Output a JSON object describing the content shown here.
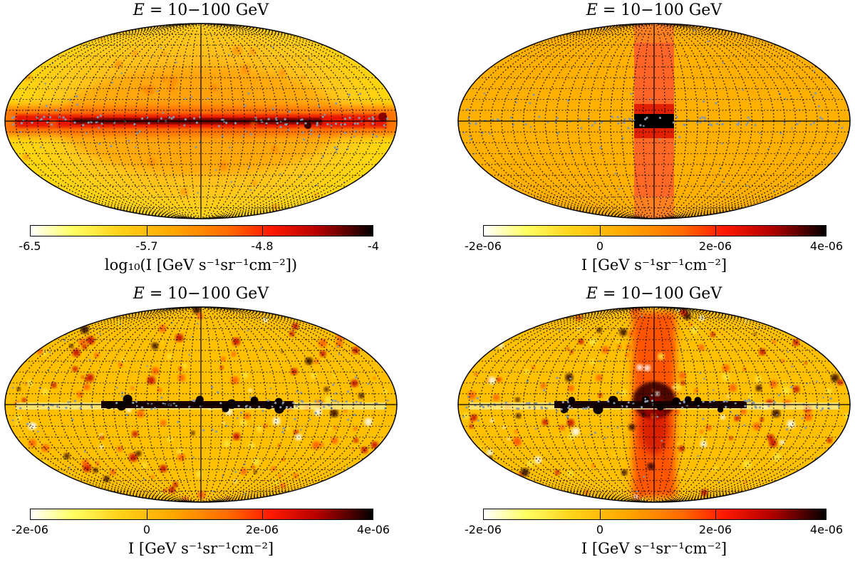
{
  "panels": [
    {
      "title_pre": "E",
      "title_post": " = 10−100 GeV",
      "variant": "log",
      "ticks": [
        "-6.5",
        "-5.7",
        "-4.8",
        "-4"
      ],
      "cb_label": "log₁₀(I [GeV s⁻¹sr⁻¹cm⁻²])"
    },
    {
      "title_pre": "E",
      "title_post": " = 10−100 GeV",
      "variant": "box",
      "ticks": [
        "-2e-06",
        "0",
        "2e-06",
        "4e-06"
      ],
      "cb_label": "I [GeV s⁻¹sr⁻¹cm⁻²]"
    },
    {
      "title_pre": "E",
      "title_post": " = 10−100 GeV",
      "variant": "resid",
      "ticks": [
        "-2e-06",
        "0",
        "2e-06",
        "4e-06"
      ],
      "cb_label": "I [GeV s⁻¹sr⁻¹cm⁻²]"
    },
    {
      "title_pre": "E",
      "title_post": " = 10−100 GeV",
      "variant": "residcross",
      "ticks": [
        "-2e-06",
        "0",
        "2e-06",
        "4e-06"
      ],
      "cb_label": "I [GeV s⁻¹sr⁻¹cm⁻²]"
    }
  ],
  "colors": {
    "bg_orange": "#ffb000",
    "deep_red": "#e01000",
    "black": "#000000",
    "grey_dot": "#8899aa"
  }
}
